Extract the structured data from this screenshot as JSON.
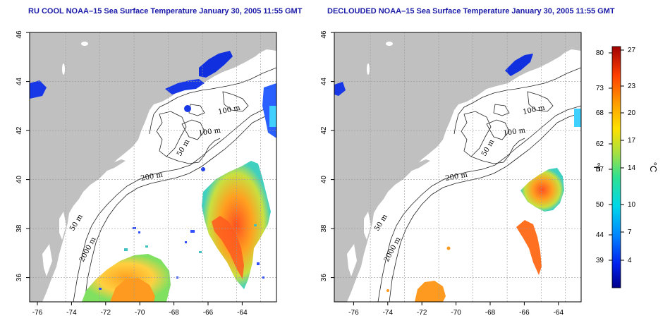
{
  "maps": [
    {
      "title": "RU COOL NOAA–15 Sea Surface Temperature January 30, 2005 11:55 GMT",
      "x_ticks": [
        "-76",
        "-74",
        "-72",
        "-70",
        "-68",
        "-66",
        "-64"
      ],
      "y_ticks": [
        "36",
        "38",
        "40",
        "42",
        "44",
        "46"
      ],
      "contour_labels": [
        "100 m",
        "100 m",
        "50 m",
        "200 m",
        "50 m",
        "2000 m"
      ]
    },
    {
      "title": "DECLOUDED NOAA–15 Sea Surface Temperature January 30, 2005 11:55 GMT",
      "x_ticks": [
        "-76",
        "-74",
        "-72",
        "-70",
        "-68",
        "-66",
        "-64"
      ],
      "y_ticks": [
        "36",
        "38",
        "40",
        "42",
        "44",
        "46"
      ],
      "contour_labels": [
        "100 m",
        "100 m",
        "50 m",
        "200 m",
        "50 m",
        "2000 m"
      ]
    }
  ],
  "colorbar": {
    "fahrenheit_label": "°F",
    "celsius_label": "°C",
    "fahrenheit_ticks": [
      "80",
      "73",
      "68",
      "62",
      "57",
      "50",
      "44",
      "39"
    ],
    "celsius_ticks": [
      "27",
      "23",
      "20",
      "17",
      "14",
      "10",
      "7",
      "4"
    ],
    "colors": [
      "#00008b",
      "#0033ff",
      "#00aaff",
      "#00e0e0",
      "#40e080",
      "#c8e040",
      "#ffd000",
      "#ff9000",
      "#ff4000",
      "#b00000"
    ]
  },
  "colors": {
    "land": "#c0c0c0",
    "ocean": "#ffffff",
    "title": "#1a1aa8"
  }
}
